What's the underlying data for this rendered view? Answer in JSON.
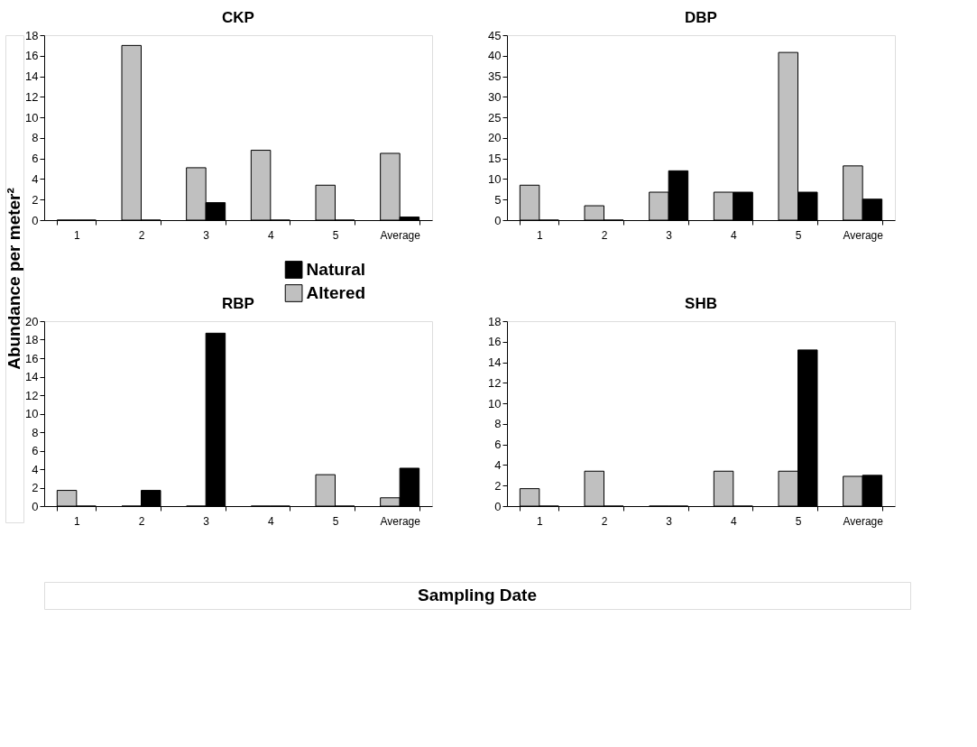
{
  "chart_data": [
    {
      "type": "bar",
      "title": "CKP",
      "ylabel": "Abundance per meter²",
      "categories": [
        "1",
        "2",
        "3",
        "4",
        "5",
        "Average"
      ],
      "legend": "bottom",
      "grid": false,
      "ylim": [
        0,
        18
      ],
      "yticks": [
        0,
        2,
        4,
        6,
        8,
        10,
        12,
        14,
        16,
        18
      ],
      "series": [
        {
          "name": "Altered",
          "color": "#c0c0c0",
          "values": [
            0,
            17,
            5.1,
            6.8,
            3.4,
            6.5
          ]
        },
        {
          "name": "Natural",
          "color": "#000000",
          "values": [
            0,
            0,
            1.7,
            0,
            0,
            0.3
          ]
        }
      ]
    },
    {
      "type": "bar",
      "title": "DBP",
      "categories": [
        "1",
        "2",
        "3",
        "4",
        "5",
        "Average"
      ],
      "legend": false,
      "grid": false,
      "ylim": [
        0,
        45
      ],
      "yticks": [
        0,
        5,
        10,
        15,
        20,
        25,
        30,
        35,
        40,
        45
      ],
      "series": [
        {
          "name": "Altered",
          "color": "#c0c0c0",
          "values": [
            8.5,
            3.5,
            6.8,
            6.8,
            40.8,
            13.2
          ]
        },
        {
          "name": "Natural",
          "color": "#000000",
          "values": [
            0,
            0,
            12,
            6.8,
            6.8,
            5.1
          ]
        }
      ]
    },
    {
      "type": "bar",
      "title": "RBP",
      "categories": [
        "1",
        "2",
        "3",
        "4",
        "5",
        "Average"
      ],
      "legend": false,
      "grid": false,
      "ylim": [
        0,
        20
      ],
      "yticks": [
        0,
        2,
        4,
        6,
        8,
        10,
        12,
        14,
        16,
        18,
        20
      ],
      "series": [
        {
          "name": "Altered",
          "color": "#c0c0c0",
          "values": [
            1.7,
            0,
            0,
            0,
            3.4,
            0.9
          ]
        },
        {
          "name": "Natural",
          "color": "#000000",
          "values": [
            0,
            1.7,
            18.7,
            0,
            0,
            4.1
          ]
        }
      ]
    },
    {
      "type": "bar",
      "title": "SHB",
      "xlabel": "Sampling Date",
      "categories": [
        "1",
        "2",
        "3",
        "4",
        "5",
        "Average"
      ],
      "legend": false,
      "grid": false,
      "ylim": [
        0,
        18
      ],
      "yticks": [
        0,
        2,
        4,
        6,
        8,
        10,
        12,
        14,
        16,
        18
      ],
      "series": [
        {
          "name": "Altered",
          "color": "#c0c0c0",
          "values": [
            1.7,
            3.4,
            0,
            3.4,
            3.4,
            2.9
          ]
        },
        {
          "name": "Natural",
          "color": "#000000",
          "values": [
            0,
            0,
            0,
            0,
            15.2,
            3.0
          ]
        }
      ]
    }
  ]
}
